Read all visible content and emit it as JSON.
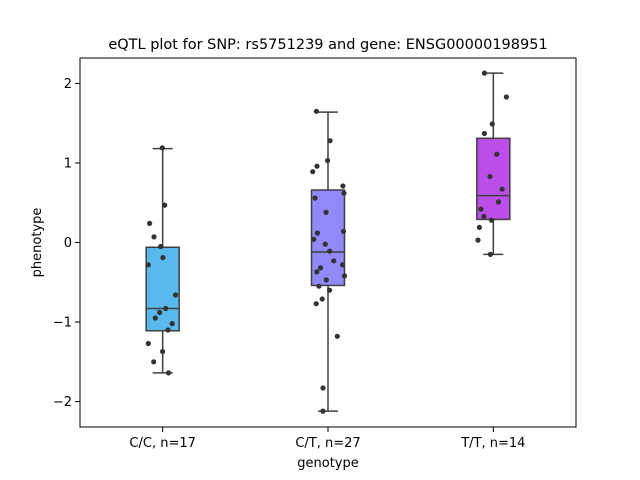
{
  "chart_data": {
    "type": "box",
    "title": "eQTL plot for SNP: rs5751239 and gene: ENSG00000198951",
    "xlabel": "genotype",
    "ylabel": "phenotype",
    "ylim": [
      -2.32,
      2.32
    ],
    "yticks": [
      -2,
      -1,
      0,
      1,
      2
    ],
    "ytick_labels": [
      "−2",
      "−1",
      "0",
      "1",
      "2"
    ],
    "grid": false,
    "categories": [
      "C/C, n=17",
      "C/T, n=27",
      "T/T, n=14"
    ],
    "colors": [
      "#59b8ec",
      "#9189f8",
      "#bb4ee8"
    ],
    "boxes": [
      {
        "q1": -1.11,
        "median": -0.83,
        "q3": -0.06,
        "whisker_low": -1.64,
        "whisker_high": 1.18
      },
      {
        "q1": -0.54,
        "median": -0.12,
        "q3": 0.66,
        "whisker_low": -2.12,
        "whisker_high": 1.64
      },
      {
        "q1": 0.29,
        "median": 0.59,
        "q3": 1.31,
        "whisker_low": -0.15,
        "whisker_high": 2.13
      }
    ],
    "points": [
      [
        1.19,
        0.47,
        0.24,
        0.07,
        -0.05,
        -0.19,
        -0.28,
        -0.66,
        -0.83,
        -0.88,
        -0.95,
        -1.02,
        -1.1,
        -1.27,
        -1.37,
        -1.5,
        -1.64
      ],
      [
        1.65,
        1.28,
        1.03,
        0.96,
        0.89,
        0.71,
        0.62,
        0.56,
        0.38,
        0.14,
        0.12,
        -0.02,
        -0.11,
        -0.23,
        -0.32,
        -0.37,
        -0.42,
        -0.47,
        -0.55,
        -0.6,
        -0.71,
        -0.77,
        -1.18,
        -1.83,
        -2.12,
        0.04,
        -0.28
      ],
      [
        2.13,
        1.83,
        1.49,
        1.37,
        1.11,
        0.83,
        0.67,
        0.51,
        0.42,
        0.33,
        0.28,
        0.19,
        0.03,
        -0.15
      ]
    ]
  }
}
